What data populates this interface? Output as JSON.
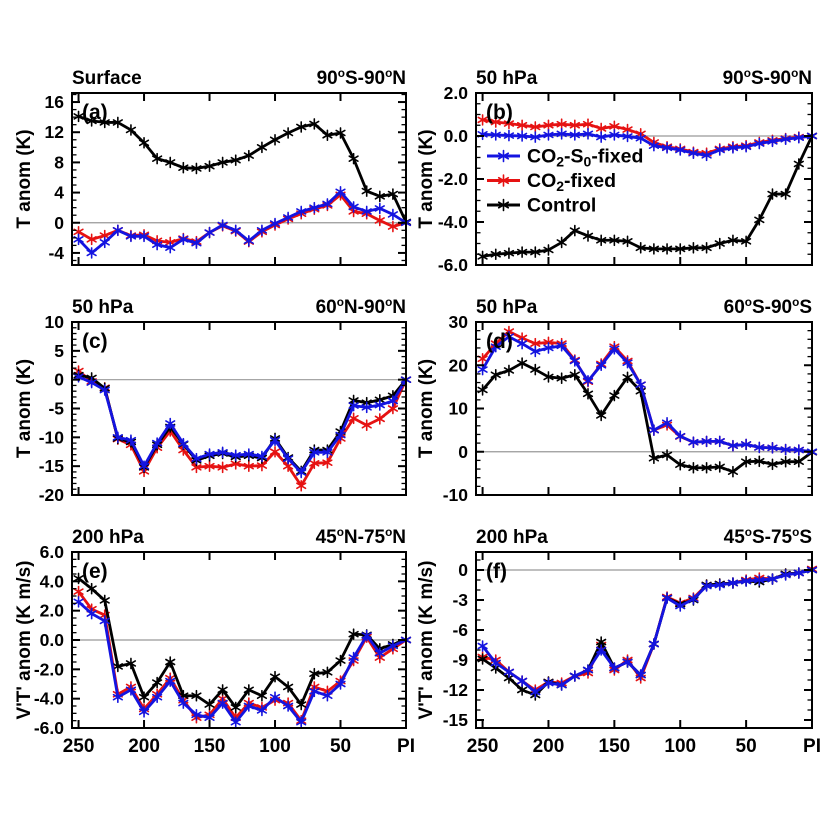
{
  "figure": {
    "background": "#ffffff",
    "description_title": ""
  },
  "colors": {
    "blue": "#1414e0",
    "red": "#e61212",
    "black": "#000000",
    "zero_line": "#999999",
    "frame": "#000000"
  },
  "legend": {
    "items": [
      {
        "name": "co2-s0-fixed",
        "color_key": "blue",
        "label": "CO2-S0-fixed",
        "parts": [
          {
            "t": "CO"
          },
          {
            "t": "2",
            "sub": true
          },
          {
            "t": "-S"
          },
          {
            "t": "0",
            "sub": true
          },
          {
            "t": "-fixed"
          }
        ]
      },
      {
        "name": "co2-fixed",
        "color_key": "red",
        "label": "CO2-fixed",
        "parts": [
          {
            "t": "CO"
          },
          {
            "t": "2",
            "sub": true
          },
          {
            "t": "-fixed"
          }
        ]
      },
      {
        "name": "control",
        "color_key": "black",
        "label": "Control",
        "parts": [
          {
            "t": "Control"
          }
        ]
      }
    ]
  },
  "x_axis": {
    "xlim": [
      255,
      0
    ],
    "x_values": [
      250,
      240,
      230,
      220,
      210,
      200,
      190,
      180,
      170,
      160,
      150,
      140,
      130,
      120,
      110,
      100,
      90,
      80,
      70,
      60,
      50,
      40,
      30,
      20,
      10,
      0
    ],
    "tick_values": [
      250,
      200,
      150,
      100,
      50,
      0
    ],
    "tick_labels": [
      "250",
      "200",
      "150",
      "100",
      "50",
      "PI"
    ]
  },
  "chart_data": [
    {
      "id": "a",
      "type": "line",
      "panel_label": "(a)",
      "title_left": "Surface",
      "title_right": "90°S-90°N",
      "ylabel": "T anom (K)",
      "ylim": [
        -5.6,
        17.2
      ],
      "yticks": [
        -4,
        0,
        4,
        8,
        12,
        16
      ],
      "ytick_labels": [
        "-4",
        "0",
        "4",
        "8",
        "12",
        "16"
      ],
      "yminor": 1,
      "series": [
        {
          "name": "CO2-S0-fixed",
          "color_key": "blue",
          "values": [
            -2.2,
            -4.0,
            -2.6,
            -1.0,
            -1.8,
            -1.8,
            -2.9,
            -3.3,
            -2.2,
            -2.7,
            -1.3,
            -0.3,
            -1.0,
            -2.4,
            -1.0,
            -0.1,
            0.7,
            1.5,
            2.0,
            2.5,
            4.1,
            2.1,
            1.5,
            1.9,
            1.1,
            0.0
          ]
        },
        {
          "name": "CO2-fixed",
          "color_key": "red",
          "values": [
            -1.2,
            -2.2,
            -1.7,
            -1.0,
            -1.7,
            -1.6,
            -2.4,
            -2.6,
            -2.1,
            -2.5,
            -1.3,
            -0.4,
            -1.1,
            -2.5,
            -1.2,
            -0.3,
            0.5,
            1.2,
            1.8,
            2.3,
            3.7,
            1.5,
            1.2,
            0.3,
            -0.5,
            0.0
          ]
        },
        {
          "name": "Control",
          "color_key": "black",
          "values": [
            14.1,
            13.5,
            13.3,
            13.3,
            12.3,
            10.6,
            8.5,
            8.0,
            7.3,
            7.2,
            7.5,
            8.0,
            8.3,
            8.9,
            10.0,
            11.0,
            11.9,
            12.7,
            13.1,
            11.6,
            11.9,
            8.5,
            4.2,
            3.5,
            3.8,
            0.1
          ]
        }
      ]
    },
    {
      "id": "b",
      "type": "line",
      "panel_label": "(b)",
      "title_left": "50 hPa",
      "title_right": "90°S-90°N",
      "ylabel": "T anom (K)",
      "ylim": [
        -6.0,
        2.0
      ],
      "yticks": [
        -6,
        -4,
        -2,
        0,
        2
      ],
      "ytick_labels": [
        "-6.0",
        "-4.0",
        "-2.0",
        "0.0",
        "2.0"
      ],
      "yminor": 0.5,
      "has_legend": true,
      "series": [
        {
          "name": "CO2-S0-fixed",
          "color_key": "blue",
          "values": [
            0.08,
            0.05,
            0.02,
            0.0,
            -0.05,
            0.05,
            0.1,
            0.05,
            0.1,
            -0.05,
            0.05,
            -0.02,
            -0.1,
            -0.45,
            -0.55,
            -0.65,
            -0.8,
            -0.9,
            -0.65,
            -0.55,
            -0.5,
            -0.35,
            -0.25,
            -0.15,
            -0.08,
            0.0
          ]
        },
        {
          "name": "CO2-fixed",
          "color_key": "red",
          "values": [
            0.75,
            0.65,
            0.58,
            0.5,
            0.42,
            0.5,
            0.55,
            0.5,
            0.55,
            0.35,
            0.45,
            0.3,
            0.1,
            -0.3,
            -0.5,
            -0.6,
            -0.75,
            -0.8,
            -0.6,
            -0.5,
            -0.45,
            -0.3,
            -0.2,
            -0.12,
            -0.05,
            0.0
          ]
        },
        {
          "name": "Control",
          "color_key": "black",
          "values": [
            -5.6,
            -5.5,
            -5.45,
            -5.4,
            -5.4,
            -5.3,
            -4.95,
            -4.4,
            -4.65,
            -4.85,
            -4.85,
            -4.9,
            -5.2,
            -5.25,
            -5.25,
            -5.25,
            -5.2,
            -5.2,
            -5.0,
            -4.85,
            -4.9,
            -3.9,
            -2.7,
            -2.7,
            -1.3,
            0.0
          ]
        }
      ]
    },
    {
      "id": "c",
      "type": "line",
      "panel_label": "(c)",
      "title_left": "50 hPa",
      "title_right": "60°N-90°N",
      "ylabel": "T anom (K)",
      "ylim": [
        -20,
        10
      ],
      "yticks": [
        -20,
        -15,
        -10,
        -5,
        0,
        5,
        10
      ],
      "ytick_labels": [
        "-20",
        "-15",
        "-10",
        "-5",
        "0",
        "5",
        "10"
      ],
      "yminor": 1,
      "series": [
        {
          "name": "CO2-S0-fixed",
          "color_key": "blue",
          "values": [
            0.5,
            -0.5,
            -1.8,
            -10.0,
            -10.5,
            -15.0,
            -11.0,
            -7.6,
            -11.1,
            -13.7,
            -12.9,
            -12.6,
            -13.1,
            -12.9,
            -13.3,
            -10.5,
            -13.7,
            -16.1,
            -12.6,
            -12.6,
            -9.6,
            -4.5,
            -4.8,
            -4.4,
            -3.7,
            0.0
          ]
        },
        {
          "name": "CO2-fixed",
          "color_key": "red",
          "values": [
            1.5,
            -0.3,
            -1.4,
            -10.3,
            -11.3,
            -15.9,
            -11.8,
            -8.9,
            -12.2,
            -15.2,
            -15.0,
            -15.2,
            -14.6,
            -15.0,
            -14.9,
            -12.5,
            -15.0,
            -18.4,
            -14.5,
            -14.4,
            -10.2,
            -6.7,
            -7.9,
            -6.8,
            -5.0,
            0.0
          ]
        },
        {
          "name": "Control",
          "color_key": "black",
          "values": [
            0.8,
            0.3,
            -1.5,
            -10.2,
            -10.8,
            -15.2,
            -11.3,
            -8.2,
            -11.2,
            -14.0,
            -13.2,
            -12.8,
            -13.4,
            -13.2,
            -13.6,
            -10.2,
            -13.5,
            -15.9,
            -12.2,
            -12.2,
            -9.0,
            -3.6,
            -4.0,
            -3.5,
            -2.8,
            0.0
          ]
        }
      ]
    },
    {
      "id": "d",
      "type": "line",
      "panel_label": "(d)",
      "title_left": "50 hPa",
      "title_right": "60°S-90°S",
      "ylabel": "T anom (K)",
      "ylim": [
        -10,
        30
      ],
      "yticks": [
        -10,
        0,
        10,
        20,
        30
      ],
      "ytick_labels": [
        "-10",
        "0",
        "10",
        "20",
        "30"
      ],
      "yminor": 2,
      "series": [
        {
          "name": "CO2-S0-fixed",
          "color_key": "blue",
          "values": [
            19.0,
            24.3,
            26.6,
            25.0,
            23.2,
            24.0,
            24.5,
            21.0,
            16.4,
            20.0,
            23.8,
            20.6,
            15.5,
            5.0,
            6.7,
            3.6,
            2.2,
            2.4,
            2.4,
            1.4,
            1.7,
            1.0,
            0.9,
            0.5,
            0.4,
            0.0
          ]
        },
        {
          "name": "CO2-fixed",
          "color_key": "red",
          "values": [
            21.5,
            25.0,
            27.8,
            26.3,
            25.0,
            25.3,
            25.0,
            21.2,
            16.2,
            20.3,
            24.3,
            21.0,
            15.5,
            5.0,
            6.2,
            3.5,
            2.2,
            2.4,
            2.4,
            1.4,
            1.7,
            1.0,
            0.9,
            0.5,
            0.4,
            -0.1
          ]
        },
        {
          "name": "Control",
          "color_key": "black",
          "values": [
            14.3,
            17.8,
            18.8,
            20.5,
            19.0,
            17.3,
            17.0,
            17.8,
            13.4,
            8.4,
            13.0,
            17.2,
            14.0,
            -1.5,
            -0.75,
            -3.0,
            -3.7,
            -3.7,
            -3.5,
            -4.6,
            -2.3,
            -2.2,
            -2.9,
            -2.3,
            -2.3,
            -0.1
          ]
        }
      ]
    },
    {
      "id": "e",
      "type": "line",
      "panel_label": "(e)",
      "title_left": "200 hPa",
      "title_right": "45°N-75°N",
      "ylabel": "V'T' anom (K m/s)",
      "ylim": [
        -6.0,
        6.0
      ],
      "yticks": [
        -6,
        -4,
        -2,
        0,
        2,
        4,
        6
      ],
      "ytick_labels": [
        "-6.0",
        "-4.0",
        "-2.0",
        "0.0",
        "2.0",
        "4.0",
        "6.0"
      ],
      "yminor": 0.5,
      "series": [
        {
          "name": "CO2-S0-fixed",
          "color_key": "blue",
          "values": [
            2.6,
            1.8,
            1.3,
            -3.9,
            -3.4,
            -4.9,
            -3.9,
            -2.8,
            -4.3,
            -5.1,
            -5.3,
            -4.3,
            -5.6,
            -4.5,
            -4.8,
            -3.9,
            -4.5,
            -5.6,
            -3.5,
            -3.8,
            -3.0,
            -1.2,
            0.3,
            -0.9,
            -0.4,
            0.0
          ]
        },
        {
          "name": "CO2-fixed",
          "color_key": "red",
          "values": [
            3.3,
            2.1,
            1.7,
            -3.7,
            -3.2,
            -4.7,
            -3.7,
            -2.6,
            -4.1,
            -5.3,
            -5.1,
            -4.0,
            -5.3,
            -4.3,
            -4.6,
            -4.1,
            -4.3,
            -5.5,
            -3.2,
            -3.5,
            -2.8,
            -1.4,
            0.2,
            -1.2,
            -0.6,
            0.0
          ]
        },
        {
          "name": "Control",
          "color_key": "black",
          "values": [
            4.2,
            3.5,
            2.7,
            -1.8,
            -1.6,
            -3.9,
            -2.9,
            -1.5,
            -3.8,
            -3.8,
            -4.4,
            -3.4,
            -4.6,
            -3.4,
            -3.8,
            -2.5,
            -3.2,
            -4.4,
            -2.3,
            -2.2,
            -1.4,
            0.4,
            0.35,
            -0.6,
            -0.3,
            0.0
          ]
        }
      ]
    },
    {
      "id": "f",
      "type": "line",
      "panel_label": "(f)",
      "title_left": "200 hPa",
      "title_right": "45°S-75°S",
      "ylabel": "V'T' anom (K m/s)",
      "ylim": [
        -15.8,
        1.8
      ],
      "yticks": [
        -15,
        -12,
        -9,
        -6,
        -3,
        0
      ],
      "ytick_labels": [
        "-15",
        "-12",
        "-9",
        "-6",
        "-3",
        "0"
      ],
      "yminor": 1,
      "series": [
        {
          "name": "CO2-S0-fixed",
          "color_key": "blue",
          "values": [
            -7.6,
            -9.3,
            -10.2,
            -11.1,
            -12.2,
            -11.3,
            -11.5,
            -10.6,
            -10.0,
            -8.0,
            -9.8,
            -9.2,
            -10.5,
            -7.4,
            -2.8,
            -3.6,
            -2.9,
            -1.6,
            -1.5,
            -1.3,
            -1.1,
            -1.0,
            -0.9,
            -0.5,
            -0.3,
            0.0
          ]
        },
        {
          "name": "CO2-fixed",
          "color_key": "red",
          "values": [
            -8.7,
            -9.0,
            -10.2,
            -11.1,
            -12.0,
            -11.2,
            -11.3,
            -10.6,
            -10.3,
            -7.5,
            -10.0,
            -9.0,
            -10.8,
            -7.4,
            -2.7,
            -3.3,
            -2.8,
            -1.5,
            -1.4,
            -1.3,
            -1.0,
            -0.8,
            -0.9,
            -0.4,
            -0.3,
            0.1
          ]
        },
        {
          "name": "Control",
          "color_key": "black",
          "values": [
            -8.9,
            -9.8,
            -10.8,
            -12.0,
            -12.5,
            -11.2,
            -11.5,
            -10.6,
            -10.0,
            -7.2,
            -9.8,
            -9.2,
            -10.5,
            -7.4,
            -2.8,
            -3.4,
            -3.0,
            -1.5,
            -1.4,
            -1.3,
            -1.1,
            -1.2,
            -0.9,
            -0.4,
            -0.3,
            0.0
          ]
        }
      ]
    }
  ]
}
